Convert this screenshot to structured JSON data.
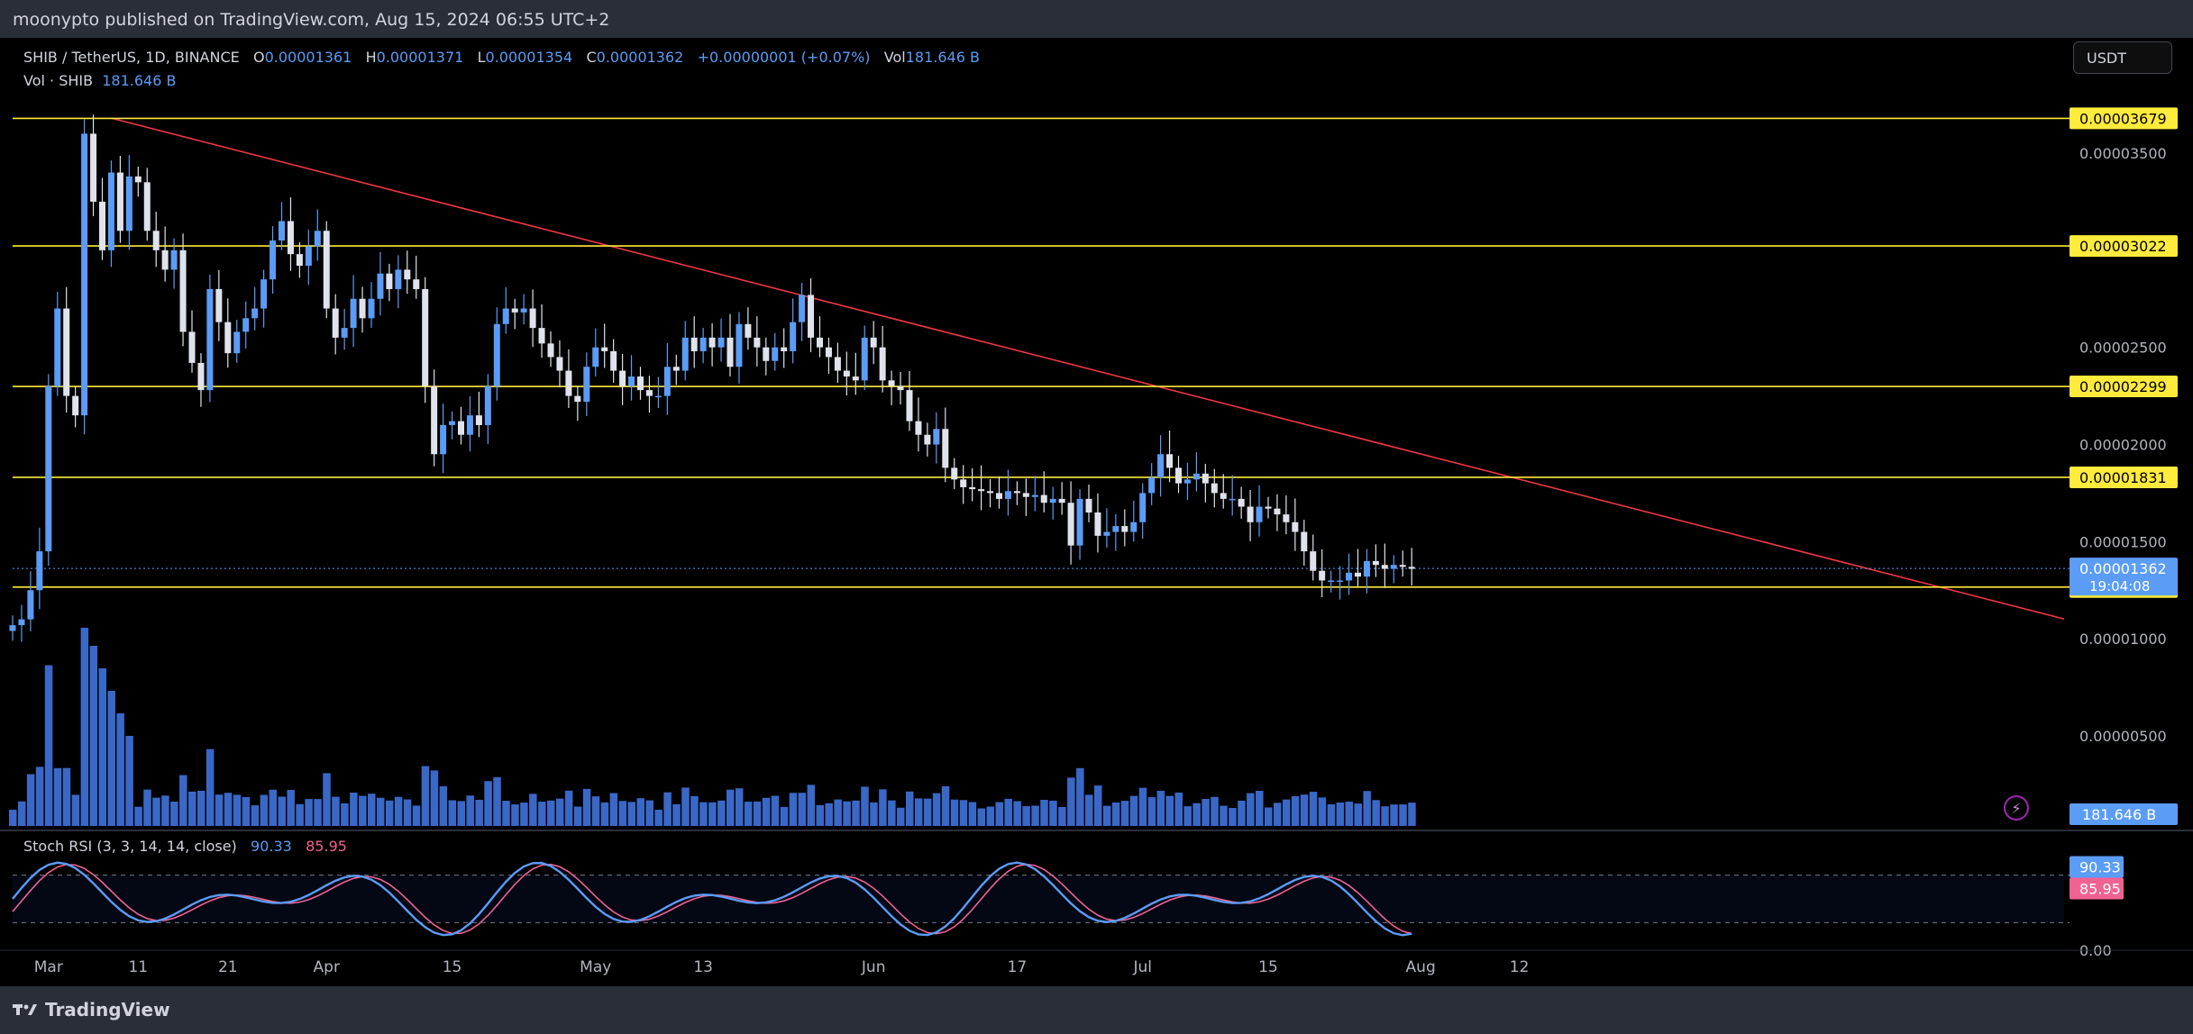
{
  "header": {
    "published": "moonypto published on TradingView.com, Aug 15, 2024 06:55 UTC+2"
  },
  "footer": {
    "brand": "TradingView"
  },
  "legend": {
    "symbol": "SHIB / TetherUS, 1D, BINANCE",
    "open_label": "O",
    "open": "0.00001361",
    "high_label": "H",
    "high": "0.00001371",
    "low_label": "L",
    "low": "0.00001354",
    "close_label": "C",
    "close": "0.00001362",
    "change": "+0.00000001 (+0.07%)",
    "vol_label": "Vol",
    "vol": "181.646 B",
    "vol_series_label": "Vol · SHIB",
    "vol_series_value": "181.646 B",
    "rsi_label": "Stoch RSI (3, 3, 14, 14, close)",
    "rsi_k": "90.33",
    "rsi_d": "85.95"
  },
  "currency": "USDT",
  "colors": {
    "up": "#5b9cf6",
    "down": "#e0e3eb",
    "trend": "#f23645",
    "level": "#ffeb3b",
    "k_line": "#5b9cf6",
    "d_line": "#f06292",
    "vol": "#3a68c7"
  },
  "chart_data": {
    "type": "candlestick",
    "symbol": "SHIB / TetherUS",
    "interval": "1D",
    "exchange": "BINANCE",
    "ylim": [
      4e-07,
      4e-06
    ],
    "y_ticks": [
      "0.00003500",
      "0.00002500",
      "0.00002000",
      "0.00001500",
      "0.00001000",
      "0.00000500"
    ],
    "x_ticks": [
      {
        "label": "Mar",
        "date": "2024-03-01"
      },
      {
        "label": "11",
        "date": "2024-03-11"
      },
      {
        "label": "21",
        "date": "2024-03-21"
      },
      {
        "label": "Apr",
        "date": "2024-04-01"
      },
      {
        "label": "15",
        "date": "2024-04-15"
      },
      {
        "label": "May",
        "date": "2024-05-01"
      },
      {
        "label": "13",
        "date": "2024-05-13"
      },
      {
        "label": "Jun",
        "date": "2024-06-01"
      },
      {
        "label": "17",
        "date": "2024-06-17"
      },
      {
        "label": "Jul",
        "date": "2024-07-01"
      },
      {
        "label": "15",
        "date": "2024-07-15"
      },
      {
        "label": "Aug",
        "date": "2024-08-01"
      },
      {
        "label": "12",
        "date": "2024-08-12"
      }
    ],
    "horizontal_levels": [
      {
        "value": 3.679e-05,
        "label": "0.00003679"
      },
      {
        "value": 3.022e-05,
        "label": "0.00003022"
      },
      {
        "value": 2.299e-05,
        "label": "0.00002299"
      },
      {
        "value": 1.831e-05,
        "label": "0.00001831"
      },
      {
        "value": 1.266e-05,
        "label": "0.00001266"
      }
    ],
    "last_price": {
      "value": 1.362e-05,
      "label": "0.00001362",
      "countdown": "19:04:08"
    },
    "volume_label": "181.646 B",
    "trendline": [
      {
        "date": "2024-03-08",
        "value": 3.68e-05
      },
      {
        "date": "2024-08-18",
        "value": 1.75e-05
      }
    ],
    "close_series": {
      "start_date": "2024-02-26",
      "values": [
        1.07,
        1.1,
        1.25,
        1.45,
        2.3,
        2.7,
        2.25,
        2.15,
        3.6,
        3.25,
        3.0,
        3.4,
        3.1,
        3.38,
        3.35,
        3.1,
        3.0,
        2.9,
        3.0,
        2.58,
        2.42,
        2.28,
        2.8,
        2.63,
        2.47,
        2.58,
        2.65,
        2.7,
        2.85,
        3.05,
        3.15,
        2.98,
        2.92,
        3.02,
        3.1,
        2.7,
        2.55,
        2.6,
        2.75,
        2.65,
        2.75,
        2.88,
        2.8,
        2.9,
        2.85,
        2.8,
        2.3,
        1.95,
        2.1,
        2.12,
        2.05,
        2.15,
        2.1,
        2.3,
        2.62,
        2.7,
        2.68,
        2.7,
        2.6,
        2.52,
        2.45,
        2.38,
        2.25,
        2.22,
        2.4,
        2.5,
        2.48,
        2.38,
        2.3,
        2.35,
        2.28,
        2.25,
        2.25,
        2.4,
        2.38,
        2.55,
        2.48,
        2.55,
        2.5,
        2.55,
        2.4,
        2.62,
        2.55,
        2.5,
        2.43,
        2.5,
        2.48,
        2.63,
        2.77,
        2.55,
        2.5,
        2.45,
        2.38,
        2.35,
        2.33,
        2.55,
        2.5,
        2.33,
        2.3,
        2.28,
        2.12,
        2.05,
        2.0,
        2.08,
        1.88,
        1.82,
        1.78,
        1.77,
        1.76,
        1.75,
        1.72,
        1.76,
        1.75,
        1.73,
        1.74,
        1.7,
        1.72,
        1.7,
        1.48,
        1.72,
        1.65,
        1.53,
        1.55,
        1.58,
        1.55,
        1.6,
        1.75,
        1.83,
        1.95,
        1.88,
        1.8,
        1.82,
        1.85,
        1.8,
        1.75,
        1.72,
        1.72,
        1.68,
        1.6,
        1.68,
        1.67,
        1.64,
        1.6,
        1.55,
        1.45,
        1.35,
        1.3,
        1.3,
        1.3,
        1.34,
        1.32,
        1.4,
        1.38,
        1.36,
        1.38,
        1.37,
        1.36
      ],
      "unit": "1e-5 USDT"
    },
    "stoch_rsi": {
      "k": 90.33,
      "d": 85.95,
      "upper": 80,
      "lower": 20,
      "zero_label": "0.00"
    }
  }
}
